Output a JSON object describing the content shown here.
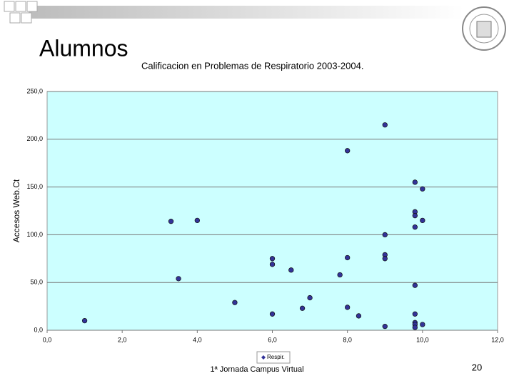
{
  "slide": {
    "title": "Alumnos",
    "footer": "1ª Jornada Campus Virtual",
    "page": "20"
  },
  "chart_data": {
    "type": "scatter",
    "title": "Calificacion en Problemas de Respiratorio 2003-2004.",
    "y_label": "Accesos Web.Ct",
    "x": [
      1.0,
      3.3,
      4.0,
      3.5,
      5.0,
      6.0,
      6.0,
      6.0,
      6.5,
      6.8,
      7.0,
      7.8,
      8.0,
      8.0,
      8.0,
      8.3,
      9.0,
      9.0,
      9.0,
      9.0,
      9.0,
      9.8,
      10.0,
      9.8,
      9.8,
      10.0,
      9.8,
      9.8,
      9.8,
      9.8,
      9.8,
      9.8,
      10.0
    ],
    "series": [
      {
        "name": "Respir.",
        "color": "#333399",
        "values": [
          10,
          114,
          115,
          54,
          29,
          75,
          69,
          17,
          63,
          23,
          34,
          58,
          76,
          188,
          24,
          15,
          215,
          100,
          79,
          75,
          4,
          155,
          148,
          124,
          120,
          115,
          108,
          47,
          17,
          8,
          6,
          3,
          6
        ]
      }
    ],
    "xlim": [
      0,
      12
    ],
    "xticks": [
      {
        "value": 0,
        "label": "0,0"
      },
      {
        "value": 2,
        "label": "2,0"
      },
      {
        "value": 4,
        "label": "4,0"
      },
      {
        "value": 6,
        "label": "6,0"
      },
      {
        "value": 8,
        "label": "8,0"
      },
      {
        "value": 10,
        "label": "10,0"
      },
      {
        "value": 12,
        "label": "12,0"
      }
    ],
    "ylim": [
      0,
      250
    ],
    "yticks": [
      {
        "value": 0,
        "label": "0,0"
      },
      {
        "value": 50,
        "label": "50,0"
      },
      {
        "value": 100,
        "label": "100,0"
      },
      {
        "value": 150,
        "label": "150,0"
      },
      {
        "value": 200,
        "label": "200,0"
      },
      {
        "value": 250,
        "label": "250,0"
      }
    ],
    "grid": true,
    "background": "#ccffff",
    "legend": "bottom"
  }
}
